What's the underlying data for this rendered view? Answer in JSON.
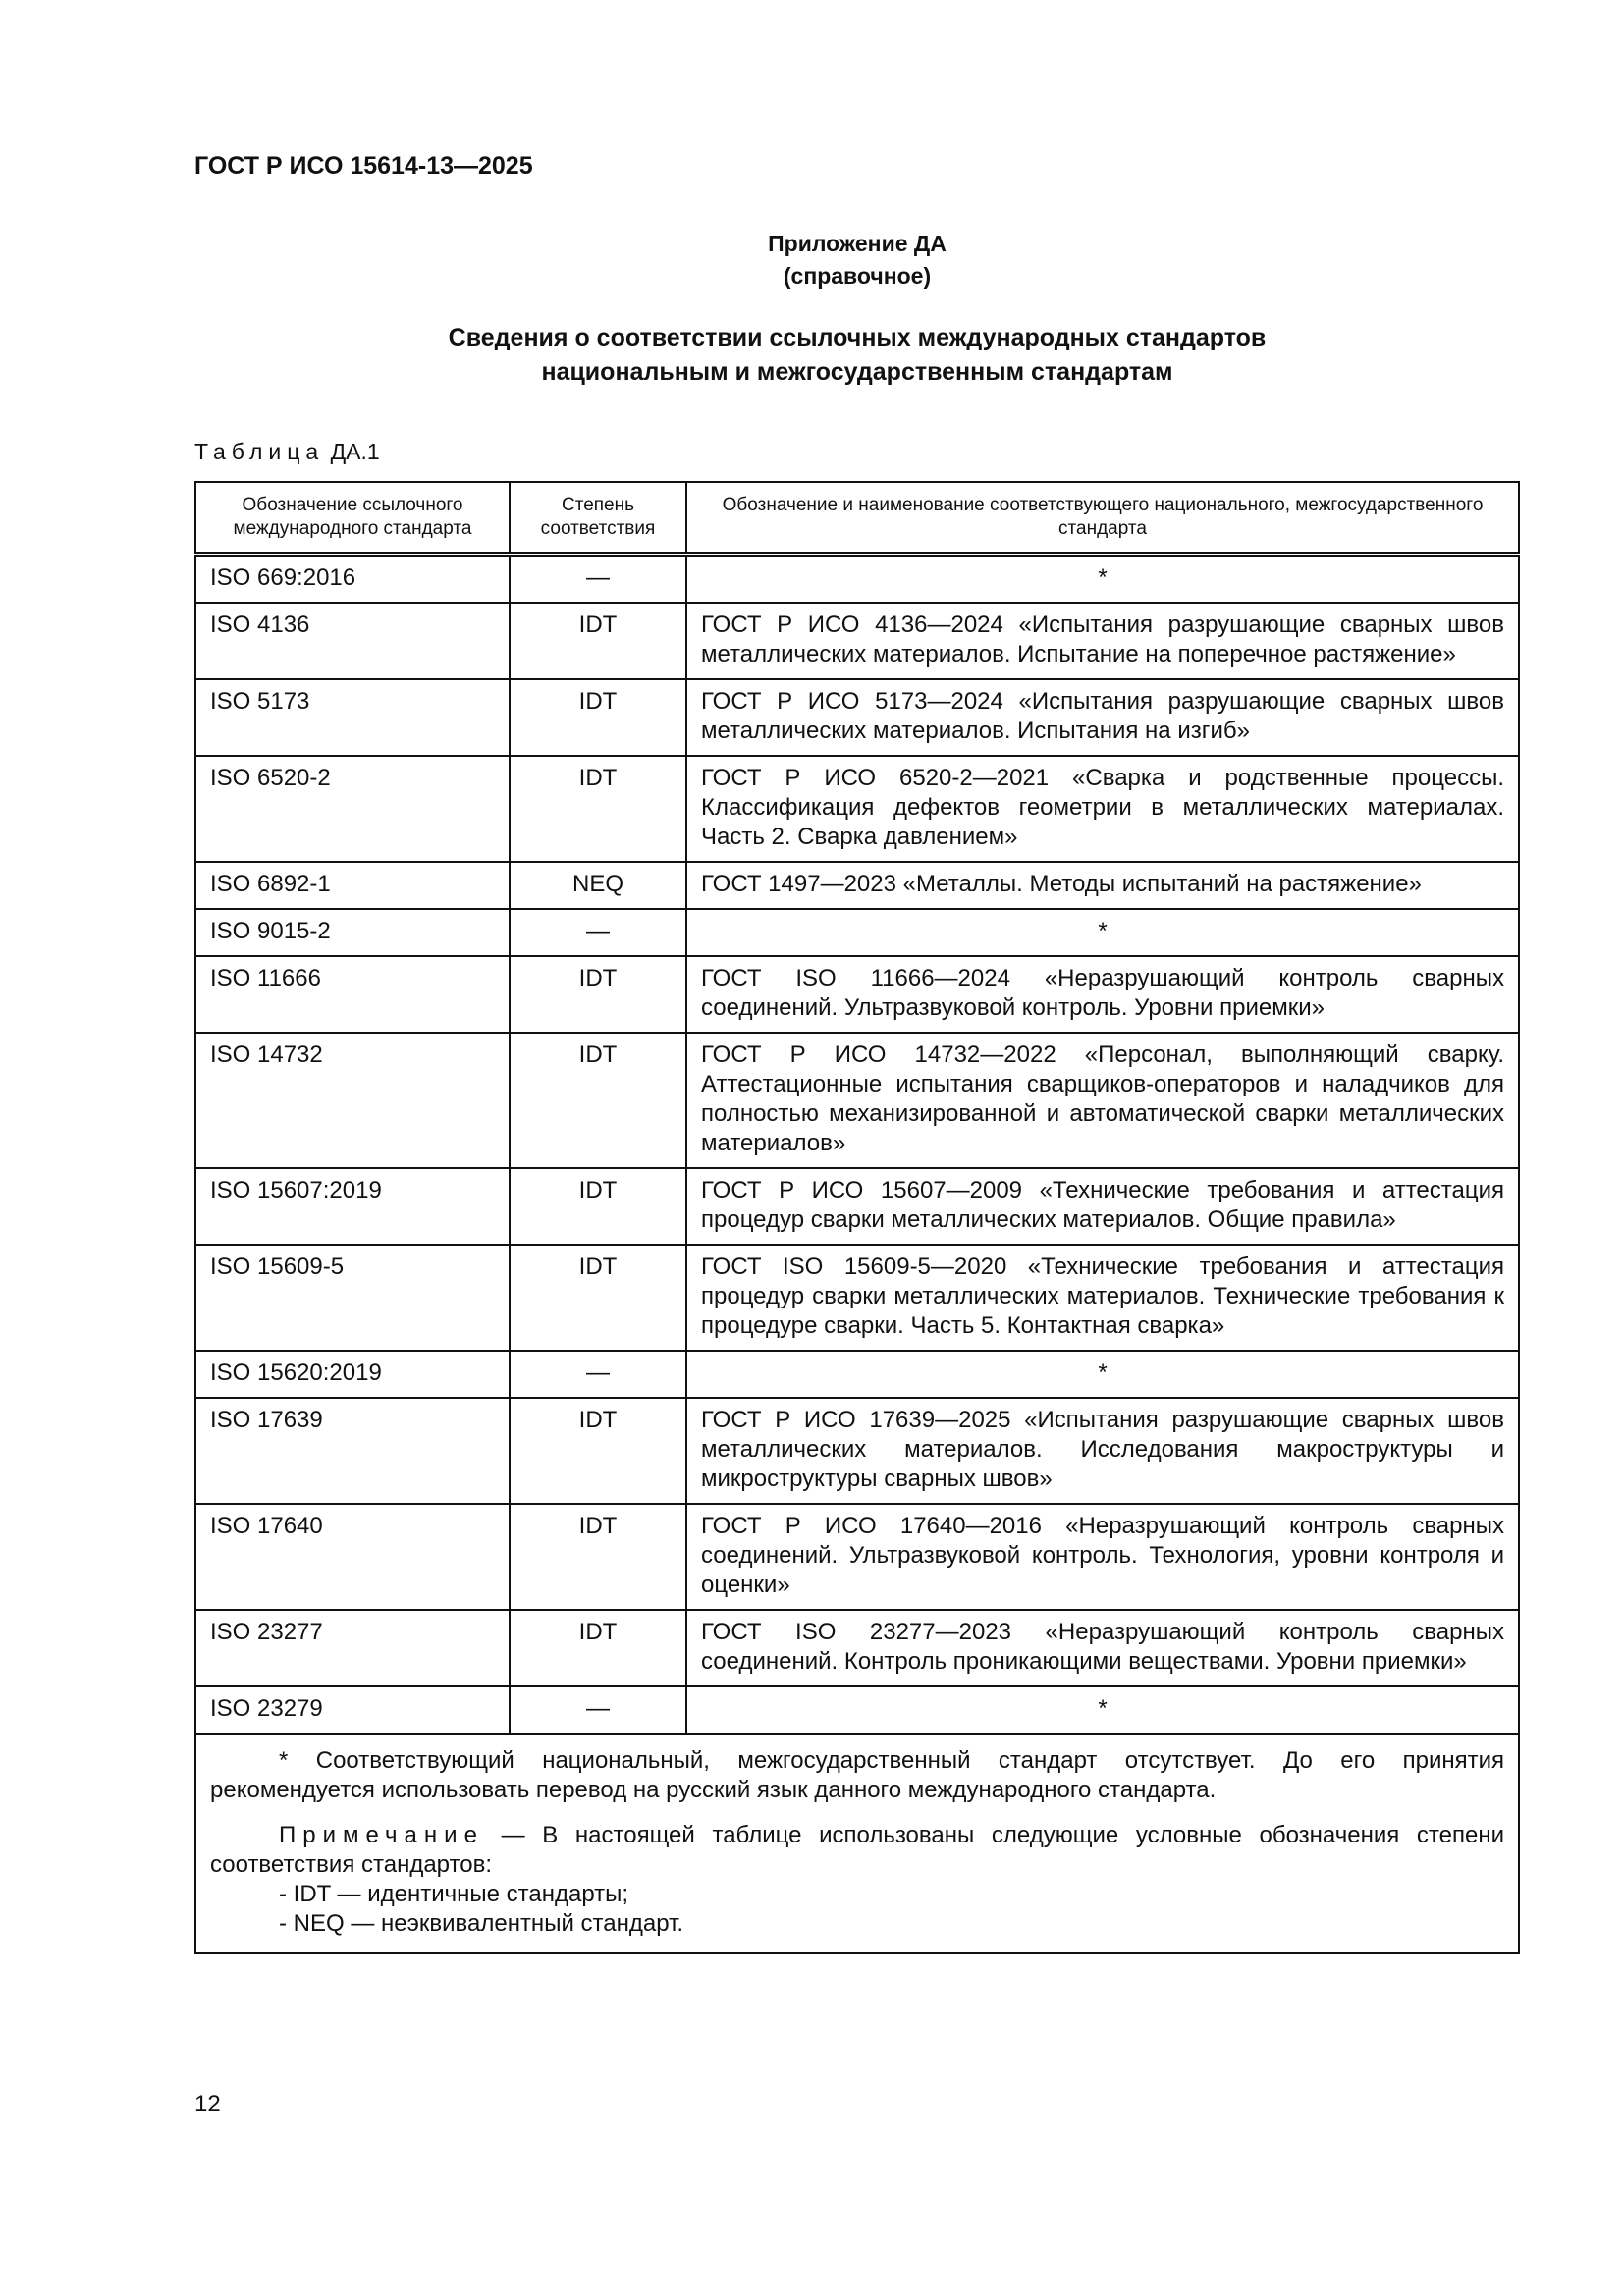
{
  "header": {
    "doc_id": "ГОСТ Р ИСО 15614-13—2025"
  },
  "appendix": {
    "title": "Приложение ДА",
    "subtitle": "(справочное)"
  },
  "heading": {
    "line1": "Сведения о соответствии ссылочных международных стандартов",
    "line2": "национальным и межгосударственным стандартам"
  },
  "table": {
    "caption_word": "Таблица",
    "caption_num": "ДА.1",
    "columns": [
      "Обозначение ссылочного международного стандарта",
      "Степень соответствия",
      "Обозначение и наименование соответствующего национального, межгосударственного стандарта"
    ],
    "rows": [
      {
        "ref": "ISO 669:2016",
        "degree": "—",
        "national": "*"
      },
      {
        "ref": "ISO 4136",
        "degree": "IDT",
        "national": "ГОСТ Р ИСО 4136—2024 «Испытания разрушающие сварных швов металлических материалов. Испытание на поперечное растяжение»"
      },
      {
        "ref": "ISO 5173",
        "degree": "IDT",
        "national": "ГОСТ Р ИСО 5173—2024 «Испытания разрушающие сварных швов металлических материалов. Испытания на изгиб»"
      },
      {
        "ref": "ISO 6520-2",
        "degree": "IDT",
        "national": "ГОСТ Р ИСО 6520-2—2021 «Сварка и родственные процессы. Классификация дефектов геометрии в металлических материалах. Часть 2. Сварка давлением»"
      },
      {
        "ref": "ISO 6892-1",
        "degree": "NEQ",
        "national": "ГОСТ 1497—2023 «Металлы. Методы испытаний на растяжение»"
      },
      {
        "ref": "ISO 9015-2",
        "degree": "—",
        "national": "*"
      },
      {
        "ref": "ISO 11666",
        "degree": "IDT",
        "national": "ГОСТ ISO 11666—2024 «Неразрушающий контроль сварных соединений. Ультразвуковой контроль. Уровни приемки»"
      },
      {
        "ref": "ISO 14732",
        "degree": "IDT",
        "national": "ГОСТ Р ИСО 14732—2022 «Персонал, выполняющий сварку. Аттестационные испытания сварщиков-операторов и наладчиков для полностью механизированной и автоматической сварки металлических материалов»"
      },
      {
        "ref": "ISO 15607:2019",
        "degree": "IDT",
        "national": "ГОСТ Р ИСО 15607—2009 «Технические требования и аттестация процедур сварки металлических материалов. Общие правила»"
      },
      {
        "ref": "ISO 15609-5",
        "degree": "IDT",
        "national": "ГОСТ ISO 15609-5—2020 «Технические требования и аттестация процедур сварки металлических материалов. Технические требования к процедуре сварки. Часть 5. Контактная сварка»"
      },
      {
        "ref": "ISO 15620:2019",
        "degree": "—",
        "national": "*"
      },
      {
        "ref": "ISO 17639",
        "degree": "IDT",
        "national": "ГОСТ Р ИСО 17639—2025 «Испытания разрушающие сварных швов металлических материалов. Исследования макроструктуры и микроструктуры сварных швов»"
      },
      {
        "ref": "ISO 17640",
        "degree": "IDT",
        "national": "ГОСТ Р ИСО 17640—2016 «Неразрушающий контроль сварных соединений. Ультразвуковой контроль. Технология, уровни контроля и оценки»"
      },
      {
        "ref": "ISO 23277",
        "degree": "IDT",
        "national": "ГОСТ ISO 23277—2023 «Неразрушающий контроль сварных соединений. Контроль проникающими веществами. Уровни приемки»"
      },
      {
        "ref": "ISO 23279",
        "degree": "—",
        "national": "*"
      }
    ],
    "footnote": "* Соответствующий национальный, межгосударственный стандарт отсутствует. До его принятия рекомендуется использовать перевод на русский язык данного международного стандарта.",
    "note_label": "Примечание",
    "note_text": " — В настоящей таблице использованы следующие условные обозначения степени соответствия стандартов:",
    "note_items": [
      "- IDT — идентичные стандарты;",
      "- NEQ — неэквивалентный стандарт."
    ]
  },
  "page_number": "12"
}
